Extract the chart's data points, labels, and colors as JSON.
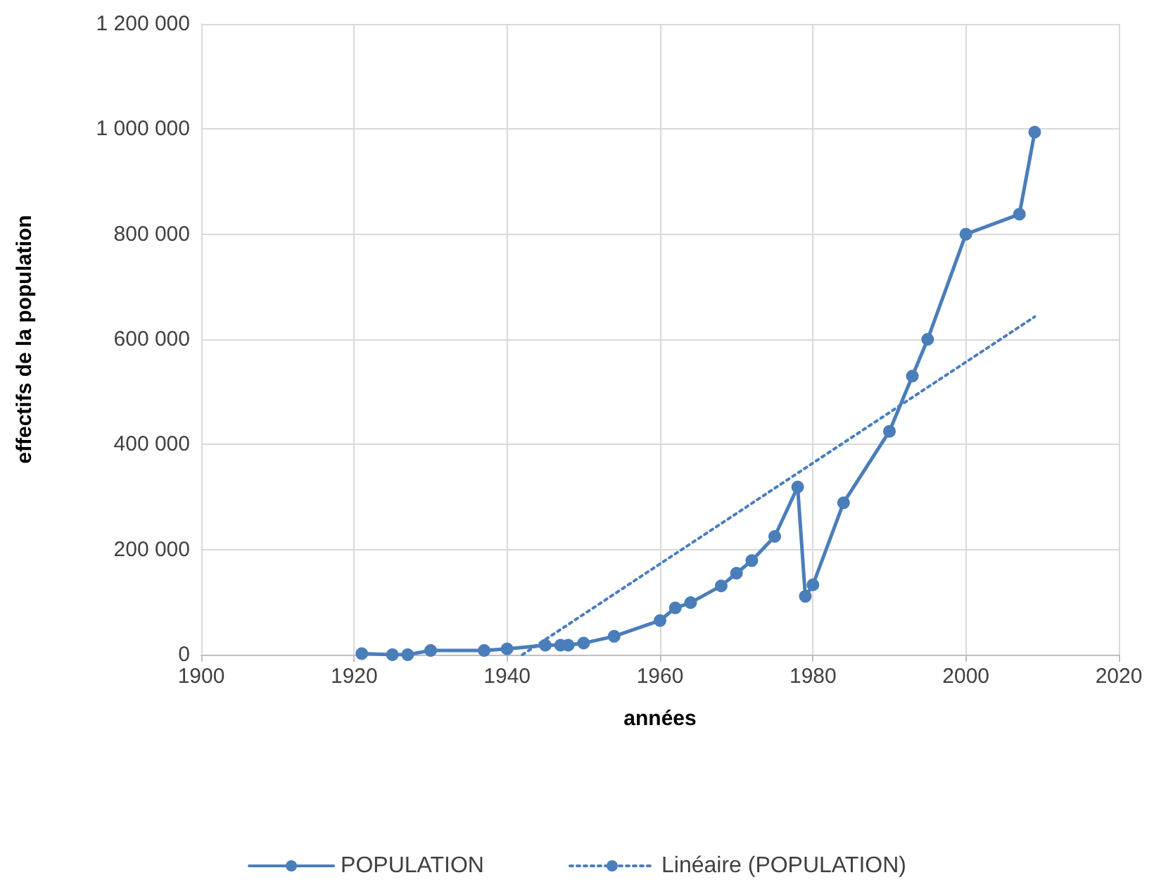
{
  "chart_data": {
    "type": "line",
    "xlabel": "années",
    "ylabel": "effectifs de la population",
    "x": [
      1921,
      1925,
      1927,
      1930,
      1937,
      1940,
      1945,
      1947,
      1948,
      1950,
      1954,
      1960,
      1962,
      1964,
      1968,
      1970,
      1972,
      1975,
      1978,
      1979,
      1980,
      1984,
      1990,
      1993,
      1995,
      2000,
      2007,
      2009
    ],
    "series": [
      {
        "name": "POPULATION",
        "color": "#4a7ebb",
        "marker": "circle",
        "line_style": "solid",
        "values": [
          2000,
          0,
          0,
          8000,
          8000,
          11000,
          18000,
          18000,
          18000,
          22000,
          35000,
          65000,
          89000,
          99000,
          131000,
          155000,
          179000,
          225000,
          319000,
          111000,
          133000,
          289000,
          425000,
          530000,
          600000,
          800000,
          838000,
          994000
        ]
      },
      {
        "name": "Linéaire (POPULATION)",
        "color": "#4a7ebb",
        "marker": "none",
        "line_style": "dotted",
        "x": [
          1942,
          2009
        ],
        "values": [
          0,
          643000
        ]
      }
    ],
    "xlim": [
      1900,
      2020
    ],
    "xticks": [
      1900,
      1920,
      1940,
      1960,
      1980,
      2000,
      2020
    ],
    "ylim": [
      0,
      1200000
    ],
    "yticks": [
      0,
      {
        "value": 200000,
        "label": "200 000"
      },
      {
        "value": 400000,
        "label": "400 000"
      },
      {
        "value": 600000,
        "label": "600 000"
      },
      {
        "value": 800000,
        "label": "800 000"
      },
      {
        "value": 1000000,
        "label": "1 000 000"
      },
      {
        "value": 1200000,
        "label": "1 200 000"
      }
    ],
    "grid": true,
    "legend": "bottom"
  }
}
